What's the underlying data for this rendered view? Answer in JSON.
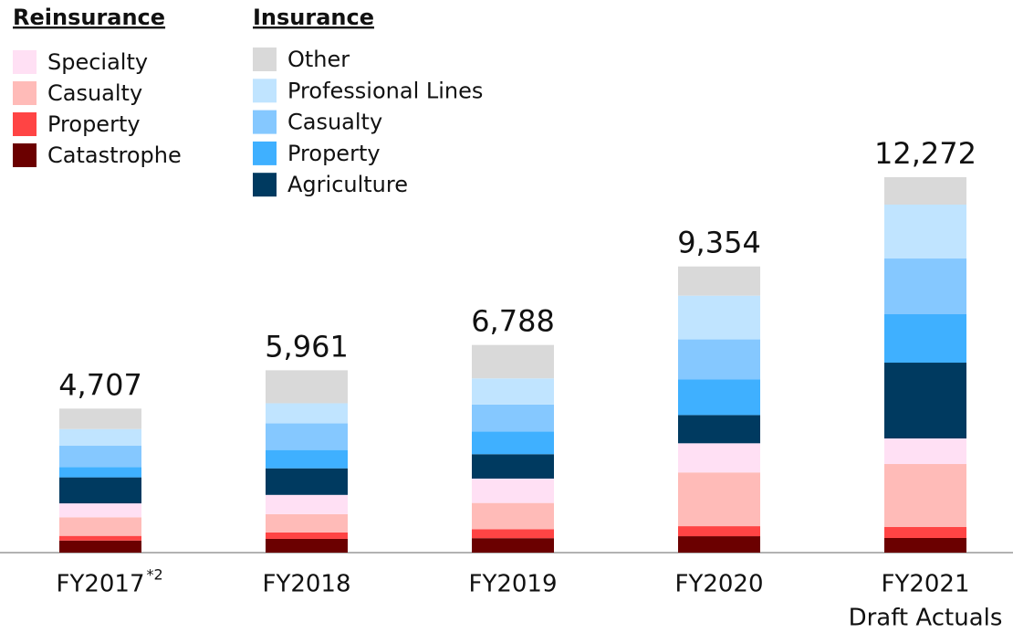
{
  "chart_data": {
    "type": "stacked_bar",
    "categories": [
      [
        "FY2017"
      ],
      [
        "FY2018"
      ],
      [
        "FY2019"
      ],
      [
        "FY2020"
      ],
      [
        "FY2021",
        "Draft Actuals"
      ]
    ],
    "category_superscripts": [
      "*2",
      null,
      null,
      null,
      null
    ],
    "groups": [
      "Reinsurance",
      "Insurance"
    ],
    "series": [
      {
        "name": "Catastrophe",
        "group": 0,
        "color": "#6b0000",
        "values": [
          395,
          449,
          472,
          536,
          478
        ]
      },
      {
        "name": "Property",
        "group": 0,
        "color": "#ff4444",
        "values": [
          152,
          210,
          295,
          328,
          358
        ]
      },
      {
        "name": "Casualty",
        "group": 0,
        "color": "#ffbbb8",
        "values": [
          607,
          599,
          856,
          1757,
          2060
        ]
      },
      {
        "name": "Specialty",
        "group": 0,
        "color": "#ffe0f4",
        "values": [
          456,
          629,
          797,
          953,
          836
        ]
      },
      {
        "name": "Agriculture",
        "group": 1,
        "color": "#003a60",
        "values": [
          850,
          869,
          797,
          923,
          2478
        ]
      },
      {
        "name": "Property",
        "group": 1,
        "color": "#3fb0ff",
        "values": [
          334,
          599,
          738,
          1162,
          1583
        ]
      },
      {
        "name": "Casualty",
        "group": 1,
        "color": "#85c8ff",
        "values": [
          699,
          869,
          885,
          1311,
          1821
        ]
      },
      {
        "name": "Professional Lines",
        "group": 1,
        "color": "#c0e4ff",
        "values": [
          547,
          659,
          856,
          1430,
          1762
        ]
      },
      {
        "name": "Other",
        "group": 1,
        "color": "#d9d9d9",
        "values": [
          667,
          1078,
          1092,
          954,
          896
        ]
      }
    ],
    "totals": [
      4707,
      5961,
      6788,
      9354,
      12272
    ],
    "totals_labels": [
      "4,707",
      "5,961",
      "6,788",
      "9,354",
      "12,272"
    ]
  }
}
